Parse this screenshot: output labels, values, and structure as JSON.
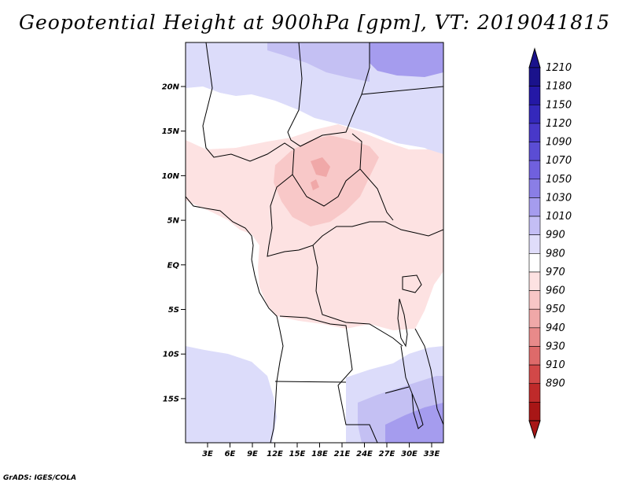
{
  "title": "Geopotential Height at 900hPa [gpm], VT: 2019041815",
  "credit": "GrADS: IGES/COLA",
  "lat_ticks": [
    "20N",
    "15N",
    "10N",
    "5N",
    "EQ",
    "5S",
    "10S",
    "15S"
  ],
  "lon_ticks": [
    "3E",
    "6E",
    "9E",
    "12E",
    "15E",
    "18E",
    "21E",
    "24E",
    "27E",
    "30E",
    "33E"
  ],
  "colorbar": {
    "labels": [
      "1210",
      "1180",
      "1150",
      "1120",
      "1090",
      "1070",
      "1050",
      "1030",
      "1010",
      "990",
      "980",
      "970",
      "960",
      "950",
      "940",
      "930",
      "910",
      "890"
    ],
    "colors": [
      "#1a128c",
      "#2418a6",
      "#3428bb",
      "#4838c9",
      "#5b4dd4",
      "#7060de",
      "#8a7ee6",
      "#a59cee",
      "#c4bef5",
      "#e0ddfa",
      "#ffffff",
      "#fde2e2",
      "#f8c6c6",
      "#f0a8a8",
      "#e88a8a",
      "#de6a6a",
      "#d24848",
      "#bf2a2a",
      "#a81616"
    ],
    "top_color": "#1a128c",
    "bottom_color": "#a81616"
  },
  "field_colors": {
    "ocean": "#ffffff",
    "light_blue": "#dcdcfa",
    "mid_blue": "#c4c0f3",
    "deep_blue": "#a59cee",
    "light_pink": "#fde2e2",
    "mid_pink": "#f8c8c8",
    "deep_pink": "#f0a8a8"
  }
}
